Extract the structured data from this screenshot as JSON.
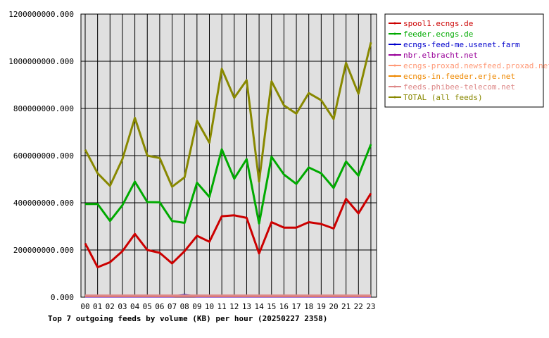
{
  "chart_data": {
    "type": "line",
    "title": "Top 7 outgoing feeds by volume (KB) per hour (20250227 2358)",
    "categories": [
      "00",
      "01",
      "02",
      "03",
      "04",
      "05",
      "06",
      "07",
      "08",
      "09",
      "10",
      "11",
      "12",
      "13",
      "14",
      "15",
      "16",
      "17",
      "18",
      "19",
      "20",
      "21",
      "22",
      "23"
    ],
    "y_tick_labels": [
      "0.000",
      "200000000.000",
      "400000000.000",
      "600000000.000",
      "800000000.000",
      "1000000000.000",
      "1200000000.000"
    ],
    "ylim": [
      0,
      1200000000
    ],
    "grid": true,
    "legend_position": "top-right",
    "plot_background": "#e0e0e0",
    "series": [
      {
        "name": "spool1.ecngs.de",
        "color": "#cc0000",
        "values": [
          228000000,
          127000000,
          148000000,
          195000000,
          268000000,
          200000000,
          188000000,
          143000000,
          195000000,
          260000000,
          235000000,
          343000000,
          347000000,
          336000000,
          185000000,
          318000000,
          295000000,
          295000000,
          318000000,
          310000000,
          291000000,
          417000000,
          355000000,
          440000000
        ]
      },
      {
        "name": "feeder.ecngs.de",
        "color": "#00aa00",
        "values": [
          395000000,
          395000000,
          323000000,
          390000000,
          490000000,
          403000000,
          402000000,
          323000000,
          315000000,
          485000000,
          425000000,
          627000000,
          502000000,
          585000000,
          312000000,
          595000000,
          520000000,
          480000000,
          550000000,
          525000000,
          463000000,
          575000000,
          515000000,
          648000000
        ]
      },
      {
        "name": "ecngs-feed-me.usenet.farm",
        "color": "#0000cc",
        "values": [
          3000000,
          3000000,
          3000000,
          3000000,
          3000000,
          3000000,
          3000000,
          3000000,
          9000000,
          3000000,
          3000000,
          3000000,
          3000000,
          3000000,
          3000000,
          3000000,
          3000000,
          3000000,
          3000000,
          3000000,
          3000000,
          3000000,
          3000000,
          3000000
        ]
      },
      {
        "name": "nbr.elbracht.net",
        "color": "#990099",
        "values": [
          4000000,
          4000000,
          4000000,
          4000000,
          4000000,
          4000000,
          4000000,
          4000000,
          4000000,
          4000000,
          4000000,
          4000000,
          4000000,
          4000000,
          4000000,
          4000000,
          4000000,
          4000000,
          4000000,
          4000000,
          4000000,
          4000000,
          4000000,
          4000000
        ]
      },
      {
        "name": "ecngs-proxad.newsfeed.proxad.net",
        "color": "#ff9977",
        "values": [
          5000000,
          5000000,
          5000000,
          5000000,
          5000000,
          5000000,
          5000000,
          5000000,
          5000000,
          5000000,
          5000000,
          5000000,
          5000000,
          5000000,
          5000000,
          5000000,
          5000000,
          5000000,
          5000000,
          5000000,
          5000000,
          5000000,
          5000000,
          5000000
        ]
      },
      {
        "name": "ecngs-in.feeder.erje.net",
        "color": "#ee8800",
        "values": [
          6000000,
          6000000,
          6000000,
          6000000,
          6000000,
          6000000,
          6000000,
          6000000,
          6000000,
          6000000,
          6000000,
          6000000,
          6000000,
          6000000,
          6000000,
          6000000,
          6000000,
          6000000,
          6000000,
          6000000,
          6000000,
          6000000,
          6000000,
          6000000
        ]
      },
      {
        "name": "feeds.phibee-telecom.net",
        "color": "#dd8888",
        "values": [
          7000000,
          7000000,
          7000000,
          7000000,
          7000000,
          7000000,
          7000000,
          7000000,
          7000000,
          7000000,
          7000000,
          7000000,
          7000000,
          7000000,
          7000000,
          7000000,
          7000000,
          7000000,
          7000000,
          7000000,
          7000000,
          7000000,
          7000000,
          7000000
        ]
      },
      {
        "name": "TOTAL (all feeds)",
        "color": "#888800",
        "values": [
          625000000,
          525000000,
          472000000,
          585000000,
          760000000,
          600000000,
          590000000,
          468000000,
          508000000,
          748000000,
          655000000,
          968000000,
          845000000,
          920000000,
          490000000,
          915000000,
          813000000,
          778000000,
          865000000,
          835000000,
          755000000,
          993000000,
          862000000,
          1080000000
        ]
      }
    ]
  }
}
